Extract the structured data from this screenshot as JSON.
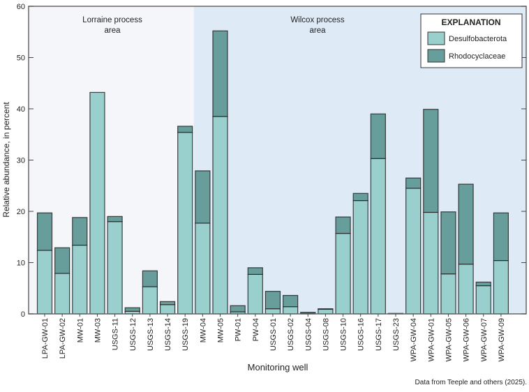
{
  "chart_data": {
    "type": "bar",
    "stacked": true,
    "xlabel": "Monitoring well",
    "ylabel": "Relative abundance, in percent",
    "ylim": [
      0,
      60
    ],
    "yticks": [
      0,
      10,
      20,
      30,
      40,
      50,
      60
    ],
    "grid": false,
    "legend_position": "top-right",
    "legend_title": "EXPLANATION",
    "credit": "Data from Teeple and others (2025).",
    "categories": [
      "LPA-GW-01",
      "LPA-GW-02",
      "MW-01",
      "MW-03",
      "USGS-11",
      "USGS-12",
      "USGS-13",
      "USGS-14",
      "USGS-19",
      "MW-04",
      "MW-05",
      "PW-01",
      "PW-04",
      "USGS-01",
      "USGS-02",
      "USGS-04",
      "USGS-08",
      "USGS-10",
      "USGS-16",
      "USGS-17",
      "USGS-23",
      "WPA-GW-04",
      "WPA-GW-01",
      "WPA-GW-05",
      "WPA-GW-06",
      "WPA-GW-07",
      "WPA-GW-09"
    ],
    "series": [
      {
        "name": "Desulfobacterota",
        "color": "#99cfcd",
        "values": [
          12.4,
          7.9,
          13.4,
          43.2,
          18.0,
          0.5,
          5.3,
          1.8,
          35.4,
          17.7,
          38.5,
          0.4,
          7.7,
          1.0,
          1.4,
          0.1,
          0.9,
          15.7,
          22.1,
          30.3,
          0.1,
          24.5,
          19.8,
          7.8,
          9.7,
          5.5,
          10.4
        ]
      },
      {
        "name": "Rhodocyclaceae",
        "color": "#679d9b",
        "values": [
          7.3,
          5.0,
          5.4,
          0.0,
          1.0,
          0.7,
          3.1,
          0.6,
          1.2,
          10.2,
          16.7,
          1.2,
          1.3,
          3.4,
          2.2,
          0.2,
          0.1,
          3.2,
          1.4,
          8.7,
          0.0,
          2.0,
          20.1,
          12.1,
          15.6,
          0.7,
          9.3
        ]
      }
    ],
    "regions": [
      {
        "label_line1": "Lorraine process",
        "label_line2": "area",
        "from": "LPA-GW-01",
        "to": "USGS-19",
        "color": "#f4f6f9"
      },
      {
        "label_line1": "Wilcox process",
        "label_line2": "area",
        "from": "MW-04",
        "to": "WPA-GW-09",
        "color": "#dfeaf7"
      }
    ]
  }
}
